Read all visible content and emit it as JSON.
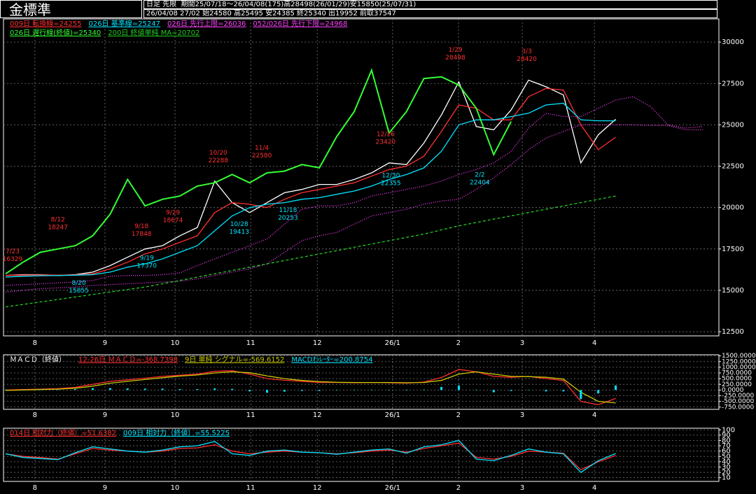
{
  "header": {
    "title": "金標準",
    "mode": "日足 先限",
    "period": "期間25/07/18～26/04/08(175)高28498(26/01/29)安15850(25/07/31)",
    "latest": "26/04/08 27/02 始24580 高25495 安24385 終25340 出19952 前取37547"
  },
  "chart_data": [
    {
      "type": "line",
      "x": [
        0,
        5,
        10,
        15,
        20,
        25,
        30,
        35,
        40,
        45,
        50,
        55,
        60,
        65,
        70,
        75,
        80,
        85,
        90,
        95,
        100,
        105,
        110,
        115,
        120,
        125,
        130,
        135,
        140,
        145,
        150,
        155,
        160,
        165,
        170,
        175,
        180,
        185,
        190,
        195,
        200
      ],
      "xlim": [
        -0.6,
        204.6
      ],
      "xticks": [
        {
          "value": 8.4,
          "label": "8"
        },
        {
          "value": 28.5,
          "label": "9"
        },
        {
          "value": 48.6,
          "label": "10"
        },
        {
          "value": 70.3,
          "label": "11"
        },
        {
          "value": 89.4,
          "label": "12"
        },
        {
          "value": 111,
          "label": "26/1"
        },
        {
          "value": 129.9,
          "label": "2"
        },
        {
          "value": 148.2,
          "label": "3"
        },
        {
          "value": 168.9,
          "label": "4"
        }
      ],
      "ylim": [
        12250,
        31400
      ],
      "yticks": [
        12500,
        15000,
        17500,
        20000,
        22500,
        25000,
        27500,
        30000
      ],
      "grid": true,
      "series": [
        {
          "color": "#ffffff",
          "values": [
            15900,
            15950,
            15950,
            15900,
            15950,
            16100,
            16500,
            17000,
            17500,
            17700,
            18300,
            18800,
            21600,
            20300,
            19700,
            20300,
            20900,
            21100,
            21400,
            21400,
            21700,
            22100,
            22700,
            22600,
            23900,
            25600,
            27600,
            24900,
            24700,
            25900,
            27700,
            27300,
            26800,
            22700,
            24400,
            25340,
            null,
            null,
            null,
            null,
            null
          ]
        },
        {
          "name": "009日 転換線=24255",
          "color": "#ff3030",
          "values": [
            15900,
            15920,
            15930,
            15920,
            15930,
            16000,
            16300,
            16700,
            17200,
            17500,
            17900,
            18300,
            19700,
            20300,
            20200,
            20000,
            20500,
            20900,
            21100,
            21300,
            21500,
            21900,
            22300,
            22500,
            23100,
            24600,
            26200,
            26000,
            25300,
            25300,
            26700,
            27200,
            27100,
            25000,
            23500,
            24255,
            null,
            null,
            null,
            null,
            null
          ]
        },
        {
          "name": "026日 基準線=25247",
          "color": "#00e5ff",
          "values": [
            15800,
            15850,
            15880,
            15900,
            15910,
            15950,
            16100,
            16400,
            16600,
            16900,
            17300,
            17700,
            18600,
            19500,
            20000,
            20200,
            20300,
            20500,
            20600,
            20800,
            21000,
            21300,
            21700,
            22000,
            22400,
            23400,
            25000,
            25300,
            25300,
            25500,
            25700,
            26200,
            26300,
            25300,
            25247,
            25247,
            null,
            null,
            null,
            null,
            null
          ]
        },
        {
          "name": "026日 先行上限=26036",
          "color": "#ff40ff",
          "line_style": "dotted",
          "values": [
            15300,
            15350,
            15400,
            15450,
            15500,
            15600,
            15850,
            15900,
            15900,
            15950,
            16050,
            16500,
            16900,
            17300,
            17700,
            18100,
            19000,
            19900,
            20100,
            20100,
            20300,
            20700,
            20900,
            21100,
            21300,
            21600,
            22000,
            22300,
            22700,
            23400,
            24800,
            25700,
            25500,
            25500,
            26000,
            26500,
            26700,
            26100,
            25000,
            24800,
            24900
          ]
        },
        {
          "name": "052/026日 先行下限=24968",
          "color": "#ff40ff",
          "line_style": "dotted",
          "values": [
            14900,
            15000,
            15100,
            15150,
            15200,
            15300,
            15350,
            15400,
            15450,
            15500,
            15550,
            15700,
            15900,
            16100,
            16300,
            16600,
            17300,
            18000,
            18300,
            18500,
            19000,
            19500,
            19700,
            19900,
            20200,
            20400,
            20500,
            21100,
            21800,
            22600,
            23500,
            24200,
            24600,
            25000,
            25000,
            25000,
            25000,
            24968,
            24968,
            24700,
            24700
          ]
        },
        {
          "name": "026日 遅行線(終値)=25340",
          "color": "#33ff33",
          "values": [
            16000,
            16700,
            17300,
            17500,
            17700,
            18300,
            19600,
            21700,
            20100,
            20500,
            20700,
            21300,
            21500,
            22000,
            21500,
            22100,
            22200,
            22600,
            22400,
            24300,
            25800,
            28300,
            24500,
            25800,
            27800,
            27900,
            27400,
            26000,
            23200,
            25200,
            null,
            null,
            null,
            null,
            null,
            null,
            null,
            null,
            null,
            null,
            null
          ]
        },
        {
          "name": "200日 終値単純 MA=20702",
          "color": "#22cc22",
          "line_style": "dashed",
          "values": [
            14000,
            14150,
            14300,
            14450,
            14600,
            14750,
            14900,
            15050,
            15200,
            15400,
            15600,
            15800,
            16000,
            16200,
            16400,
            16600,
            16800,
            17000,
            17200,
            17400,
            17600,
            17800,
            18000,
            18200,
            18400,
            18650,
            18900,
            19100,
            19300,
            19500,
            19700,
            19900,
            20100,
            20300,
            20500,
            20702,
            null,
            null,
            null,
            null,
            null
          ]
        }
      ],
      "annotations": [
        {
          "label": "7/23",
          "value": 16329,
          "x": 2,
          "color": "#ff3030"
        },
        {
          "label": "8/12",
          "value": 18247,
          "x": 15,
          "color": "#ff3030"
        },
        {
          "label": "8/20",
          "value": 15855,
          "x": 21,
          "color": "#00e5ff"
        },
        {
          "label": "9/18",
          "value": 17848,
          "x": 39,
          "color": "#ff3030"
        },
        {
          "label": "9/19",
          "value": 17370,
          "x": 40.5,
          "color": "#00e5ff"
        },
        {
          "label": "9/29",
          "value": 18674,
          "x": 48,
          "color": "#ff3030"
        },
        {
          "label": "10/20",
          "value": 22288,
          "x": 61,
          "color": "#ff3030"
        },
        {
          "label": "10/28",
          "value": 19413,
          "x": 67,
          "color": "#00e5ff"
        },
        {
          "label": "11/4",
          "value": 22580,
          "x": 73.5,
          "color": "#ff3030"
        },
        {
          "label": "11/18",
          "value": 20253,
          "x": 81,
          "color": "#00e5ff"
        },
        {
          "label": "12/26",
          "value": 23420,
          "x": 109,
          "color": "#ff3030"
        },
        {
          "label": "12/30",
          "value": 22355,
          "x": 110.5,
          "color": "#00e5ff"
        },
        {
          "label": "1/29",
          "value": 28498,
          "x": 129,
          "color": "#ff3030"
        },
        {
          "label": "2/2",
          "value": 22404,
          "x": 136,
          "color": "#00e5ff"
        },
        {
          "label": "3/3",
          "value": 28420,
          "x": 149.5,
          "color": "#ff3030"
        }
      ]
    },
    {
      "type": "line",
      "title": "ＭＡＣＤ（終値）",
      "x": [
        0,
        5,
        10,
        15,
        20,
        25,
        30,
        35,
        40,
        45,
        50,
        55,
        60,
        65,
        70,
        75,
        80,
        85,
        90,
        95,
        100,
        105,
        110,
        115,
        120,
        125,
        130,
        135,
        140,
        145,
        150,
        155,
        160,
        165,
        170,
        175
      ],
      "xlim": [
        -0.6,
        204.6
      ],
      "xticks": [
        {
          "value": 8.4,
          "label": "8"
        },
        {
          "value": 28.5,
          "label": "9"
        },
        {
          "value": 48.6,
          "label": "10"
        },
        {
          "value": 70.3,
          "label": "11"
        },
        {
          "value": 89.4,
          "label": "12"
        },
        {
          "value": 111,
          "label": "26/1"
        },
        {
          "value": 129.9,
          "label": "2"
        },
        {
          "value": 148.2,
          "label": "3"
        },
        {
          "value": 168.9,
          "label": "4"
        }
      ],
      "ylim": [
        -850,
        1550
      ],
      "yticks": [
        {
          "value": -750,
          "label": "-750.0000"
        },
        {
          "value": -500,
          "label": "-500.0000"
        },
        {
          "value": -250,
          "label": "-250.0000"
        },
        {
          "value": 0,
          "label": "0.0000"
        },
        {
          "value": 250,
          "label": "250.0000"
        },
        {
          "value": 500,
          "label": "500.0000"
        },
        {
          "value": 750,
          "label": "750.0000"
        },
        {
          "value": 1000,
          "label": "1000.0000"
        },
        {
          "value": 1250,
          "label": "1250.0000"
        },
        {
          "value": 1500,
          "label": "1500.0000"
        }
      ],
      "grid": true,
      "series": [
        {
          "name": "12-26日 ＭＡＣＤ=-368.7398",
          "color": "#ff3030",
          "values": [
            0,
            20,
            40,
            60,
            120,
            250,
            380,
            450,
            520,
            600,
            650,
            700,
            820,
            850,
            700,
            500,
            430,
            380,
            330,
            330,
            320,
            330,
            320,
            300,
            350,
            550,
            900,
            800,
            600,
            560,
            600,
            500,
            420,
            -500,
            -650,
            -368.7398
          ]
        },
        {
          "name": "9日 単純 シグナル=-569.6152",
          "color": "#c8c800",
          "values": [
            -20,
            0,
            20,
            40,
            80,
            170,
            300,
            380,
            460,
            540,
            610,
            660,
            750,
            800,
            760,
            620,
            500,
            420,
            370,
            340,
            330,
            330,
            330,
            320,
            330,
            420,
            700,
            800,
            700,
            600,
            590,
            560,
            480,
            -100,
            -500,
            -569.6152
          ]
        },
        {
          "name": "MACDｵｼﾚｰﾀｰ=200.8754",
          "color": "#00e5ff",
          "type": "bar",
          "values": [
            20,
            20,
            20,
            20,
            40,
            80,
            80,
            70,
            60,
            60,
            40,
            40,
            70,
            50,
            -60,
            -120,
            -70,
            -40,
            -40,
            -10,
            -10,
            0,
            -10,
            -20,
            20,
            130,
            200,
            0,
            -100,
            -40,
            10,
            -60,
            -60,
            -400,
            -150,
            200.8754
          ]
        }
      ]
    },
    {
      "type": "line",
      "x": [
        0,
        5,
        10,
        15,
        20,
        25,
        30,
        35,
        40,
        45,
        50,
        55,
        60,
        65,
        70,
        75,
        80,
        85,
        90,
        95,
        100,
        105,
        110,
        115,
        120,
        125,
        130,
        135,
        140,
        145,
        150,
        155,
        160,
        165,
        170,
        175
      ],
      "xlim": [
        -0.6,
        204.6
      ],
      "xticks": [
        {
          "value": 8.4,
          "label": "8"
        },
        {
          "value": 28.5,
          "label": "9"
        },
        {
          "value": 48.6,
          "label": "10"
        },
        {
          "value": 70.3,
          "label": "11"
        },
        {
          "value": 89.4,
          "label": "12"
        },
        {
          "value": 111,
          "label": "26/1"
        },
        {
          "value": 129.9,
          "label": "2"
        },
        {
          "value": 148.2,
          "label": "3"
        },
        {
          "value": 168.9,
          "label": "4"
        }
      ],
      "ylim": [
        3,
        103
      ],
      "yticks": [
        10,
        20,
        30,
        40,
        50,
        60,
        70,
        80,
        90,
        100
      ],
      "grid": true,
      "series": [
        {
          "name": "014日 相対力（終値）=51.6382",
          "color": "#ff3030",
          "values": [
            55,
            50,
            48,
            45,
            55,
            65,
            62,
            60,
            58,
            60,
            65,
            66,
            72,
            60,
            55,
            58,
            60,
            58,
            57,
            55,
            57,
            60,
            62,
            58,
            65,
            70,
            75,
            48,
            45,
            50,
            60,
            58,
            56,
            25,
            40,
            51.6382
          ]
        },
        {
          "name": "009日 相対力（終値）=55.5225",
          "color": "#00e5ff",
          "values": [
            55,
            48,
            46,
            44,
            57,
            68,
            64,
            60,
            58,
            62,
            68,
            70,
            78,
            55,
            52,
            60,
            62,
            58,
            57,
            54,
            58,
            62,
            64,
            56,
            68,
            72,
            80,
            45,
            42,
            52,
            64,
            58,
            55,
            20,
            42,
            55.5225
          ]
        }
      ]
    }
  ]
}
